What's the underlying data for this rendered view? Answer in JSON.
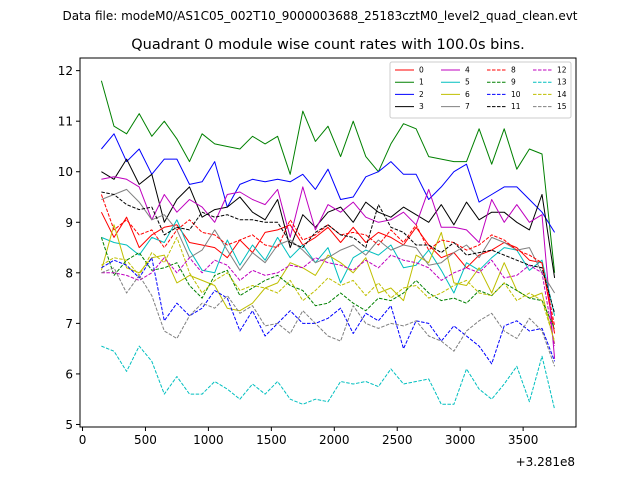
{
  "suptitle": "Data file: modeM0/AS1C05_002T10_9000003688_25183cztM0_level2_quad_clean.evt",
  "chart_data": {
    "type": "line",
    "title": "Quadrant 0 module wise count rates with 100.0s bins.",
    "xlabel": "",
    "ylabel": "",
    "x_offset_label": "+3.281e8",
    "xlim": [
      -20,
      3920
    ],
    "ylim": [
      4.95,
      12.25
    ],
    "xticks": [
      0,
      500,
      1000,
      1500,
      2000,
      2500,
      3000,
      3500
    ],
    "xtick_labels": [
      "0",
      "500",
      "1000",
      "1500",
      "2000",
      "2500",
      "3000",
      "3500"
    ],
    "yticks": [
      5,
      6,
      7,
      8,
      9,
      10,
      11,
      12
    ],
    "ytick_labels": [
      "5",
      "6",
      "7",
      "8",
      "9",
      "10",
      "11",
      "12"
    ],
    "grid": false,
    "legend_position": "top-right",
    "x": [
      150,
      250,
      350,
      450,
      550,
      650,
      750,
      850,
      950,
      1050,
      1150,
      1250,
      1350,
      1450,
      1550,
      1650,
      1750,
      1850,
      1950,
      2050,
      2150,
      2250,
      2350,
      2450,
      2550,
      2650,
      2750,
      2850,
      2950,
      3050,
      3150,
      3250,
      3350,
      3450,
      3550,
      3650,
      3750
    ],
    "series": [
      {
        "name": "0",
        "color": "#ff0000",
        "dash": "solid",
        "values": [
          9.2,
          8.7,
          9.1,
          8.5,
          8.75,
          8.9,
          8.95,
          8.6,
          8.55,
          8.5,
          8.3,
          8.65,
          8.4,
          8.8,
          8.85,
          8.95,
          8.55,
          8.7,
          8.9,
          8.6,
          8.9,
          8.6,
          8.8,
          8.7,
          8.55,
          8.9,
          8.55,
          8.3,
          8.4,
          8.1,
          8.35,
          8.45,
          8.6,
          8.5,
          8.25,
          8.2,
          6.8
        ]
      },
      {
        "name": "1",
        "color": "#008000",
        "dash": "solid",
        "values": [
          11.8,
          10.9,
          10.75,
          11.15,
          10.7,
          11.0,
          10.65,
          10.2,
          10.75,
          10.55,
          10.5,
          10.45,
          10.7,
          10.55,
          10.7,
          9.95,
          11.2,
          10.6,
          10.9,
          10.3,
          11.0,
          10.3,
          10.0,
          10.55,
          10.95,
          10.85,
          10.3,
          10.25,
          10.2,
          10.2,
          10.85,
          10.15,
          10.85,
          10.05,
          10.45,
          10.35,
          8.0
        ]
      },
      {
        "name": "2",
        "color": "#0000ff",
        "dash": "solid",
        "values": [
          10.45,
          10.75,
          10.2,
          10.45,
          9.95,
          10.25,
          10.25,
          9.75,
          9.8,
          10.2,
          9.3,
          9.75,
          9.85,
          9.8,
          9.85,
          9.8,
          9.95,
          9.65,
          10.05,
          9.45,
          9.5,
          9.9,
          10.0,
          10.2,
          9.95,
          9.95,
          9.45,
          9.7,
          10.0,
          10.15,
          9.4,
          9.55,
          9.7,
          9.7,
          9.45,
          9.2,
          8.8
        ]
      },
      {
        "name": "3",
        "color": "#000000",
        "dash": "solid",
        "values": [
          10.0,
          9.85,
          10.25,
          9.75,
          9.95,
          9.0,
          9.45,
          9.7,
          9.1,
          9.25,
          9.3,
          9.5,
          9.2,
          9.05,
          9.45,
          8.5,
          9.15,
          8.9,
          9.2,
          9.3,
          9.0,
          9.4,
          9.2,
          9.1,
          9.3,
          9.15,
          9.0,
          9.35,
          8.95,
          9.4,
          9.05,
          9.2,
          9.2,
          9.0,
          8.85,
          9.55,
          7.9
        ]
      },
      {
        "name": "4",
        "color": "#bf00bf",
        "dash": "solid",
        "values": [
          9.85,
          9.9,
          9.85,
          9.7,
          9.05,
          9.55,
          9.2,
          9.45,
          9.3,
          9.0,
          9.55,
          9.6,
          9.45,
          9.35,
          9.65,
          8.7,
          9.7,
          8.85,
          9.35,
          9.2,
          9.4,
          9.1,
          9.0,
          9.05,
          9.2,
          8.95,
          9.65,
          8.9,
          8.9,
          8.85,
          8.6,
          9.45,
          9.0,
          9.35,
          9.0,
          9.15,
          6.3
        ]
      },
      {
        "name": "5",
        "color": "#00bfbf",
        "dash": "solid",
        "values": [
          8.7,
          8.6,
          8.55,
          8.35,
          8.7,
          8.6,
          9.05,
          8.45,
          8.05,
          8.0,
          8.65,
          8.15,
          8.55,
          8.25,
          8.7,
          8.3,
          8.55,
          8.2,
          8.5,
          7.8,
          8.3,
          8.45,
          8.35,
          8.55,
          8.1,
          8.15,
          8.45,
          8.05,
          7.6,
          8.2,
          8.05,
          8.3,
          8.5,
          8.45,
          8.05,
          8.25,
          7.15
        ]
      },
      {
        "name": "6",
        "color": "#bfbf00",
        "dash": "solid",
        "values": [
          8.05,
          8.95,
          8.1,
          8.0,
          8.3,
          8.35,
          7.8,
          7.95,
          7.85,
          7.75,
          7.3,
          7.25,
          7.4,
          7.7,
          7.8,
          8.2,
          8.1,
          7.95,
          8.35,
          8.2,
          8.0,
          8.3,
          7.6,
          7.7,
          7.45,
          8.35,
          8.2,
          8.8,
          7.8,
          7.75,
          8.1,
          7.6,
          8.2,
          7.65,
          7.5,
          7.6,
          6.6
        ]
      },
      {
        "name": "7",
        "color": "#808080",
        "dash": "solid",
        "values": [
          9.45,
          9.55,
          9.65,
          9.4,
          9.05,
          9.15,
          8.85,
          8.3,
          8.45,
          8.85,
          8.45,
          8.05,
          8.4,
          8.2,
          8.55,
          8.65,
          8.45,
          8.2,
          8.3,
          8.45,
          8.55,
          8.35,
          8.65,
          8.45,
          8.55,
          8.5,
          8.15,
          8.2,
          8.4,
          8.55,
          8.3,
          8.7,
          8.6,
          8.45,
          8.5,
          8.0,
          7.6
        ]
      },
      {
        "name": "8",
        "color": "#ff0000",
        "dash": "dashed",
        "values": [
          9.55,
          8.85,
          9.05,
          8.75,
          8.85,
          8.5,
          8.85,
          9.05,
          8.8,
          8.75,
          8.55,
          8.65,
          8.75,
          8.55,
          8.5,
          9.05,
          8.65,
          8.75,
          8.95,
          8.75,
          8.8,
          8.75,
          8.55,
          8.85,
          8.6,
          8.95,
          8.45,
          8.65,
          8.6,
          8.45,
          8.55,
          8.75,
          8.65,
          8.45,
          8.35,
          8.2,
          6.95
        ]
      },
      {
        "name": "9",
        "color": "#008000",
        "dash": "dashed",
        "values": [
          8.7,
          7.95,
          8.25,
          8.4,
          8.05,
          8.1,
          8.2,
          7.75,
          7.5,
          7.95,
          8.05,
          7.55,
          7.7,
          7.85,
          7.95,
          7.75,
          7.65,
          7.35,
          7.4,
          7.6,
          7.4,
          7.25,
          7.5,
          7.45,
          7.6,
          7.85,
          7.6,
          7.45,
          7.5,
          7.4,
          7.65,
          7.55,
          7.8,
          7.65,
          7.5,
          7.45,
          6.9
        ]
      },
      {
        "name": "10",
        "color": "#0000ff",
        "dash": "dashed",
        "values": [
          8.1,
          8.25,
          8.15,
          7.9,
          8.3,
          7.05,
          7.4,
          7.15,
          7.3,
          7.65,
          7.5,
          6.85,
          7.25,
          6.75,
          7.0,
          7.25,
          7.0,
          7.0,
          7.1,
          7.3,
          6.8,
          7.2,
          7.05,
          7.35,
          6.5,
          7.05,
          7.0,
          6.65,
          6.95,
          6.75,
          6.55,
          6.2,
          6.95,
          7.05,
          6.85,
          6.9,
          6.25
        ]
      },
      {
        "name": "11",
        "color": "#000000",
        "dash": "dashed",
        "values": [
          9.6,
          9.55,
          9.35,
          9.25,
          9.3,
          8.75,
          8.9,
          8.85,
          9.2,
          9.1,
          9.15,
          9.05,
          9.05,
          9.0,
          9.0,
          8.6,
          8.5,
          8.8,
          8.95,
          8.75,
          8.7,
          8.5,
          9.35,
          8.9,
          8.8,
          8.55,
          8.55,
          8.4,
          8.6,
          8.35,
          8.4,
          8.45,
          8.35,
          8.25,
          8.15,
          8.1,
          7.2
        ]
      },
      {
        "name": "12",
        "color": "#bf00bf",
        "dash": "dashed",
        "values": [
          8.0,
          8.0,
          7.95,
          7.85,
          8.0,
          8.3,
          8.0,
          8.3,
          8.0,
          8.25,
          8.15,
          7.85,
          8.05,
          7.95,
          8.0,
          8.15,
          8.1,
          8.3,
          8.2,
          8.15,
          8.05,
          8.25,
          8.1,
          8.35,
          8.25,
          8.2,
          8.1,
          7.85,
          8.0,
          8.1,
          8.0,
          8.25,
          7.9,
          7.95,
          8.15,
          8.0,
          6.55
        ]
      },
      {
        "name": "13",
        "color": "#00bfbf",
        "dash": "dashed",
        "values": [
          6.55,
          6.45,
          6.05,
          6.55,
          6.25,
          5.6,
          5.95,
          5.6,
          5.6,
          5.85,
          5.7,
          5.5,
          5.8,
          5.6,
          5.85,
          5.5,
          5.4,
          5.5,
          5.45,
          5.85,
          5.8,
          5.85,
          5.75,
          6.1,
          5.8,
          5.85,
          5.9,
          5.4,
          5.4,
          6.1,
          5.7,
          5.5,
          5.8,
          6.15,
          5.45,
          6.35,
          5.3
        ]
      },
      {
        "name": "14",
        "color": "#bfbf00",
        "dash": "dashed",
        "values": [
          8.15,
          8.3,
          8.25,
          7.95,
          8.4,
          8.2,
          8.7,
          8.0,
          7.6,
          7.85,
          8.0,
          7.65,
          7.75,
          7.7,
          7.6,
          7.85,
          7.45,
          7.65,
          7.9,
          7.75,
          7.85,
          7.55,
          7.8,
          7.5,
          7.7,
          7.75,
          7.5,
          7.6,
          7.75,
          7.85,
          7.6,
          7.55,
          7.8,
          7.45,
          7.6,
          7.45,
          6.65
        ]
      },
      {
        "name": "15",
        "color": "#808080",
        "dash": "dashed",
        "values": [
          8.0,
          8.1,
          7.6,
          7.95,
          7.55,
          6.85,
          6.7,
          7.15,
          7.4,
          7.3,
          7.55,
          7.2,
          7.35,
          6.95,
          7.0,
          6.8,
          7.25,
          7.0,
          6.75,
          6.65,
          7.35,
          7.0,
          6.9,
          7.0,
          6.95,
          7.05,
          6.75,
          6.65,
          6.45,
          6.85,
          7.05,
          7.2,
          6.85,
          6.7,
          7.1,
          6.85,
          6.15
        ]
      }
    ]
  }
}
